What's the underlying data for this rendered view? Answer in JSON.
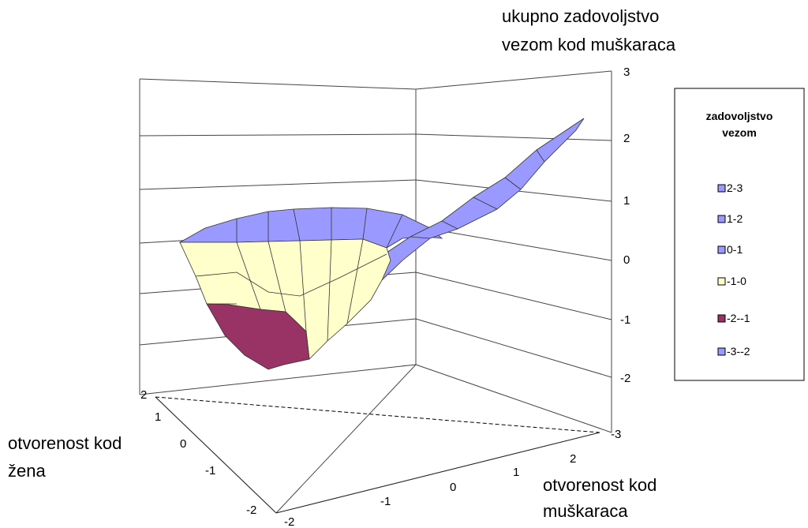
{
  "chart_data": {
    "type": "surface",
    "z_axis_title": [
      "ukupno zadovoljstvo",
      "vezom kod muškaraca"
    ],
    "y_axis_title": [
      "otvorenost kod",
      "žena"
    ],
    "x_axis_title": [
      "otvorenost kod",
      "muškaraca"
    ],
    "z_ticks": [
      "3",
      "2",
      "1",
      "0",
      "-1",
      "-2",
      "-3"
    ],
    "y_ticks": [
      "2",
      "1",
      "0",
      "-1",
      "-2"
    ],
    "x_ticks": [
      "-2",
      "-1",
      "0",
      "1",
      "2"
    ],
    "zlim": [
      -3,
      3
    ],
    "grid": true,
    "legend": {
      "title": [
        "zadovoljstvo",
        "vezom"
      ],
      "position": "right",
      "items": [
        {
          "label": "2-3",
          "color": "#9999ff"
        },
        {
          "label": "1-2",
          "color": "#9999ff"
        },
        {
          "label": "0-1",
          "color": "#9999ff"
        },
        {
          "label": "-1-0",
          "color": "#ffffcc"
        },
        {
          "label": "-2--1",
          "color": "#993366"
        },
        {
          "label": "-3--2",
          "color": "#9999ff"
        }
      ]
    },
    "colors": {
      "band_0_1": "#9999ff",
      "band_m1_0": "#ffffcc",
      "band_m2_m1": "#993366"
    }
  }
}
